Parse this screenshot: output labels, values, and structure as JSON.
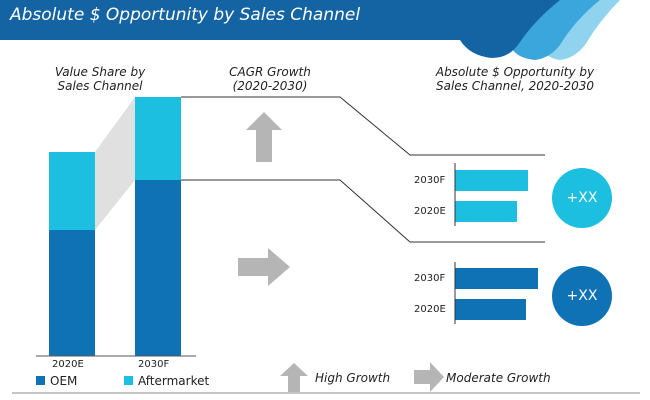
{
  "header": {
    "title": "Absolute $ Opportunity by Sales Channel"
  },
  "colors": {
    "oem": "#0e72b5",
    "aftermarket": "#1cbfdf",
    "header": "#1463a3",
    "arrow": "#b5b5b5"
  },
  "panels": {
    "value_share": "Value Share by\nSales Channel",
    "cagr": "CAGR Growth\n(2020-2030)",
    "absolute": "Absolute $ Opportunity by\nSales Channel, 2020-2030"
  },
  "chart_data": [
    {
      "type": "bar",
      "title": "Value Share by Sales Channel",
      "categories": [
        "2020E",
        "2030F"
      ],
      "series": [
        {
          "name": "OEM",
          "values": [
            126,
            176
          ]
        },
        {
          "name": "Aftermarket",
          "values": [
            78,
            83
          ]
        }
      ],
      "stacked": true,
      "ylim": [
        0,
        260
      ]
    },
    {
      "type": "bar",
      "title": "Aftermarket",
      "orientation": "horizontal",
      "categories": [
        "2030F",
        "2020E"
      ],
      "values": [
        73,
        62
      ],
      "badge": "+XX"
    },
    {
      "type": "bar",
      "title": "OEM",
      "orientation": "horizontal",
      "categories": [
        "2030F",
        "2020E"
      ],
      "values": [
        83,
        71
      ],
      "badge": "+XX"
    }
  ],
  "legend": {
    "oem": "OEM",
    "aftermarket": "Aftermarket",
    "high": "High Growth",
    "moderate": "Moderate Growth"
  }
}
